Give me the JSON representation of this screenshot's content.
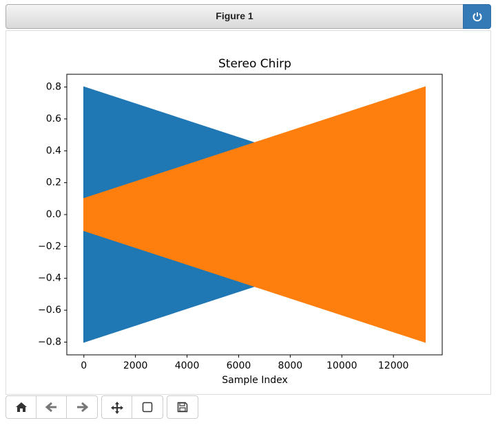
{
  "window": {
    "title": "Figure 1"
  },
  "chart_data": {
    "type": "area",
    "title": "Stereo Chirp",
    "x_label": "Sample Index",
    "x": [
      0,
      13230
    ],
    "series": [
      {
        "color": "#1f77b4",
        "values": [
          0.8,
          0.1
        ],
        "lower": [
          -0.8,
          -0.1
        ]
      },
      {
        "color": "#ff7f0e",
        "values": [
          0.1,
          0.8
        ],
        "lower": [
          -0.1,
          -0.8
        ]
      }
    ],
    "xlim": [
      -661,
      13891
    ],
    "xticks": [
      0,
      2000,
      4000,
      6000,
      8000,
      10000,
      12000
    ],
    "ylim": [
      -0.88,
      0.88
    ],
    "yticks": [
      {
        "value": -0.8,
        "label": "−0.8"
      },
      {
        "value": -0.6,
        "label": "−0.6"
      },
      {
        "value": -0.4,
        "label": "−0.4"
      },
      {
        "value": -0.2,
        "label": "−0.2"
      },
      {
        "value": 0,
        "label": "0.0"
      },
      0.2,
      0.4,
      0.6,
      0.8
    ],
    "grid": false
  }
}
